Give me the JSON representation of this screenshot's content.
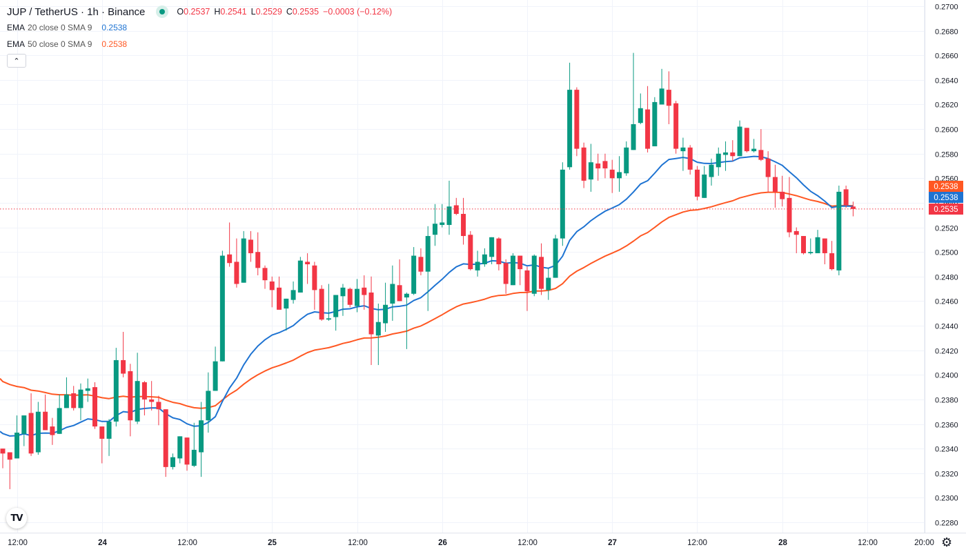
{
  "header": {
    "title": "JUP / TetherUS · 1h · Binance",
    "ohlc": {
      "o_label": "O",
      "o": "0.2537",
      "h_label": "H",
      "h": "0.2541",
      "l_label": "L",
      "l": "0.2529",
      "c_label": "C",
      "c": "0.2535",
      "change": "−0.0003 (−0.12%)"
    },
    "indicators": [
      {
        "name": "EMA",
        "args": "20 close 0 SMA 9",
        "value": "0.2538",
        "color": "#1e73d2"
      },
      {
        "name": "EMA",
        "args": "50 close 0 SMA 9",
        "value": "0.2538",
        "color": "#ff5722"
      }
    ],
    "collapse_icon": "chevron-up-icon"
  },
  "logo_text": "TV",
  "colors": {
    "up": "#089981",
    "down": "#f23645",
    "ema20": "#1e73d2",
    "ema50": "#ff5722",
    "grid": "#f0f3fa"
  },
  "price_labels": [
    {
      "value": "0.2538",
      "color": "#ff5722"
    },
    {
      "value": "0.2538",
      "color": "#1e73d2"
    },
    {
      "value": "0.2535",
      "color": "#f23645"
    }
  ],
  "chart_data": {
    "type": "candlestick",
    "title": "JUP / TetherUS · 1h · Binance",
    "interval": "1h",
    "ylim": [
      0.228,
      0.27
    ],
    "yticks": [
      "0.2700",
      "0.2680",
      "0.2660",
      "0.2640",
      "0.2620",
      "0.2600",
      "0.2580",
      "0.2560",
      "0.2540",
      "0.2520",
      "0.2500",
      "0.2480",
      "0.2460",
      "0.2440",
      "0.2420",
      "0.2400",
      "0.2380",
      "0.2360",
      "0.2340",
      "0.2320",
      "0.2300",
      "0.2280"
    ],
    "xticks": [
      {
        "label": "12:00",
        "index": 2
      },
      {
        "label": "24",
        "index": 14
      },
      {
        "label": "12:00",
        "index": 26
      },
      {
        "label": "25",
        "index": 38
      },
      {
        "label": "12:00",
        "index": 50
      },
      {
        "label": "26",
        "index": 62
      },
      {
        "label": "12:00",
        "index": 74
      },
      {
        "label": "27",
        "index": 86
      },
      {
        "label": "12:00",
        "index": 98
      },
      {
        "label": "28",
        "index": 110
      },
      {
        "label": "12:00",
        "index": 122
      },
      {
        "label": "20:00",
        "index": 130
      }
    ],
    "last_price": 0.2535,
    "ema_seed": {
      "ema20": 0.2354,
      "ema50": 0.2397
    },
    "ohlc": [
      [
        0.234,
        0.234,
        0.2324,
        0.2336
      ],
      [
        0.2337,
        0.2337,
        0.2307,
        0.2331
      ],
      [
        0.2332,
        0.2367,
        0.2332,
        0.2353
      ],
      [
        0.2352,
        0.2367,
        0.2342,
        0.2367
      ],
      [
        0.2369,
        0.2385,
        0.2334,
        0.2336
      ],
      [
        0.2337,
        0.2378,
        0.2335,
        0.237
      ],
      [
        0.237,
        0.2384,
        0.2355,
        0.2355
      ],
      [
        0.2358,
        0.2365,
        0.2343,
        0.2351
      ],
      [
        0.2352,
        0.2384,
        0.2352,
        0.2373
      ],
      [
        0.2373,
        0.2398,
        0.2373,
        0.2384
      ],
      [
        0.2385,
        0.2391,
        0.2371,
        0.2373
      ],
      [
        0.2373,
        0.2393,
        0.2363,
        0.2388
      ],
      [
        0.2387,
        0.2397,
        0.2378,
        0.2389
      ],
      [
        0.239,
        0.2394,
        0.2356,
        0.2358
      ],
      [
        0.2358,
        0.2358,
        0.2328,
        0.2348
      ],
      [
        0.2348,
        0.2364,
        0.2334,
        0.2362
      ],
      [
        0.2362,
        0.2422,
        0.2358,
        0.2412
      ],
      [
        0.2412,
        0.2435,
        0.2398,
        0.2401
      ],
      [
        0.2403,
        0.2409,
        0.235,
        0.2363
      ],
      [
        0.2362,
        0.2418,
        0.236,
        0.2395
      ],
      [
        0.2394,
        0.2395,
        0.2367,
        0.238
      ],
      [
        0.238,
        0.2395,
        0.2371,
        0.2378
      ],
      [
        0.2378,
        0.2383,
        0.2359,
        0.2372
      ],
      [
        0.2372,
        0.2372,
        0.2317,
        0.2325
      ],
      [
        0.2325,
        0.2336,
        0.2323,
        0.2333
      ],
      [
        0.2332,
        0.235,
        0.2328,
        0.235
      ],
      [
        0.2349,
        0.2349,
        0.2322,
        0.2327
      ],
      [
        0.2326,
        0.2361,
        0.2325,
        0.2339
      ],
      [
        0.2337,
        0.2378,
        0.2317,
        0.2363
      ],
      [
        0.2363,
        0.2402,
        0.2353,
        0.2387
      ],
      [
        0.2387,
        0.2423,
        0.2387,
        0.2411
      ],
      [
        0.2411,
        0.2501,
        0.2411,
        0.2497
      ],
      [
        0.2498,
        0.2524,
        0.2488,
        0.2491
      ],
      [
        0.2492,
        0.2511,
        0.2471,
        0.2474
      ],
      [
        0.2475,
        0.2517,
        0.2475,
        0.2511
      ],
      [
        0.251,
        0.2517,
        0.2492,
        0.2499
      ],
      [
        0.25,
        0.2516,
        0.2481,
        0.2487
      ],
      [
        0.2487,
        0.2489,
        0.247,
        0.2477
      ],
      [
        0.2476,
        0.248,
        0.2455,
        0.2469
      ],
      [
        0.2471,
        0.248,
        0.2453,
        0.2453
      ],
      [
        0.2454,
        0.2462,
        0.2436,
        0.2462
      ],
      [
        0.2461,
        0.2476,
        0.2458,
        0.2469
      ],
      [
        0.2467,
        0.2496,
        0.2467,
        0.2493
      ],
      [
        0.2492,
        0.2499,
        0.2474,
        0.249
      ],
      [
        0.2489,
        0.2492,
        0.2453,
        0.2469
      ],
      [
        0.247,
        0.2473,
        0.2444,
        0.2445
      ],
      [
        0.2445,
        0.2474,
        0.2444,
        0.2446
      ],
      [
        0.2447,
        0.2465,
        0.2436,
        0.2465
      ],
      [
        0.2464,
        0.2474,
        0.2448,
        0.2471
      ],
      [
        0.247,
        0.2471,
        0.2455,
        0.2457
      ],
      [
        0.2456,
        0.2478,
        0.2451,
        0.247
      ],
      [
        0.2471,
        0.2481,
        0.2453,
        0.2465
      ],
      [
        0.2467,
        0.248,
        0.2408,
        0.2433
      ],
      [
        0.2432,
        0.2458,
        0.2408,
        0.2443
      ],
      [
        0.2442,
        0.2475,
        0.2435,
        0.2457
      ],
      [
        0.2458,
        0.2489,
        0.2444,
        0.2474
      ],
      [
        0.2473,
        0.2494,
        0.246,
        0.246
      ],
      [
        0.2463,
        0.2467,
        0.2421,
        0.2466
      ],
      [
        0.2466,
        0.2504,
        0.2465,
        0.2497
      ],
      [
        0.2496,
        0.2503,
        0.2481,
        0.2484
      ],
      [
        0.2484,
        0.2521,
        0.2452,
        0.2513
      ],
      [
        0.2514,
        0.2539,
        0.2505,
        0.2523
      ],
      [
        0.2522,
        0.2539,
        0.252,
        0.2524
      ],
      [
        0.2522,
        0.2558,
        0.2514,
        0.2537
      ],
      [
        0.2538,
        0.2544,
        0.253,
        0.2531
      ],
      [
        0.2531,
        0.2544,
        0.2506,
        0.2513
      ],
      [
        0.2514,
        0.2517,
        0.2485,
        0.2486
      ],
      [
        0.2485,
        0.2501,
        0.248,
        0.2492
      ],
      [
        0.249,
        0.2503,
        0.2488,
        0.2498
      ],
      [
        0.2496,
        0.2512,
        0.249,
        0.2512
      ],
      [
        0.2511,
        0.2512,
        0.2485,
        0.249
      ],
      [
        0.2491,
        0.2494,
        0.2466,
        0.2474
      ],
      [
        0.2473,
        0.2499,
        0.2473,
        0.2497
      ],
      [
        0.2497,
        0.2497,
        0.2473,
        0.2486
      ],
      [
        0.2485,
        0.2488,
        0.2452,
        0.2468
      ],
      [
        0.2466,
        0.2498,
        0.2464,
        0.2497
      ],
      [
        0.2496,
        0.2507,
        0.2465,
        0.247
      ],
      [
        0.2469,
        0.2487,
        0.2461,
        0.2479
      ],
      [
        0.2479,
        0.2514,
        0.2479,
        0.2511
      ],
      [
        0.2511,
        0.2573,
        0.2505,
        0.2567
      ],
      [
        0.2569,
        0.2654,
        0.2567,
        0.2632
      ],
      [
        0.2632,
        0.2634,
        0.2578,
        0.2584
      ],
      [
        0.2585,
        0.2589,
        0.2552,
        0.2558
      ],
      [
        0.2559,
        0.2588,
        0.2549,
        0.2573
      ],
      [
        0.2572,
        0.258,
        0.2558,
        0.2568
      ],
      [
        0.2574,
        0.258,
        0.256,
        0.2568
      ],
      [
        0.2567,
        0.2575,
        0.2548,
        0.256
      ],
      [
        0.256,
        0.2578,
        0.2549,
        0.2565
      ],
      [
        0.2564,
        0.259,
        0.2562,
        0.2585
      ],
      [
        0.2583,
        0.2662,
        0.2583,
        0.2604
      ],
      [
        0.2605,
        0.2629,
        0.2604,
        0.2617
      ],
      [
        0.2616,
        0.2635,
        0.2581,
        0.2584
      ],
      [
        0.2586,
        0.2626,
        0.2586,
        0.2622
      ],
      [
        0.262,
        0.2649,
        0.262,
        0.2633
      ],
      [
        0.2632,
        0.2647,
        0.2604,
        0.2619
      ],
      [
        0.2621,
        0.2623,
        0.258,
        0.2584
      ],
      [
        0.2582,
        0.2593,
        0.2566,
        0.2585
      ],
      [
        0.2585,
        0.2587,
        0.2563,
        0.2567
      ],
      [
        0.2567,
        0.257,
        0.2542,
        0.2545
      ],
      [
        0.2544,
        0.257,
        0.2544,
        0.2563
      ],
      [
        0.2561,
        0.2576,
        0.2554,
        0.2571
      ],
      [
        0.2569,
        0.2585,
        0.2562,
        0.258
      ],
      [
        0.2579,
        0.259,
        0.2566,
        0.2581
      ],
      [
        0.2581,
        0.2591,
        0.2574,
        0.2578
      ],
      [
        0.2578,
        0.2607,
        0.2578,
        0.2602
      ],
      [
        0.2601,
        0.2601,
        0.2581,
        0.2582
      ],
      [
        0.2582,
        0.2592,
        0.2581,
        0.2584
      ],
      [
        0.2583,
        0.26,
        0.2574,
        0.2575
      ],
      [
        0.2576,
        0.2582,
        0.2549,
        0.2561
      ],
      [
        0.2561,
        0.2571,
        0.2536,
        0.2549
      ],
      [
        0.2549,
        0.2562,
        0.2537,
        0.2543
      ],
      [
        0.2544,
        0.2561,
        0.2512,
        0.2516
      ],
      [
        0.2517,
        0.252,
        0.2499,
        0.2514
      ],
      [
        0.2513,
        0.2513,
        0.2498,
        0.2499
      ],
      [
        0.2499,
        0.2511,
        0.2498,
        0.25
      ],
      [
        0.2499,
        0.2518,
        0.2499,
        0.2512
      ],
      [
        0.2511,
        0.2511,
        0.249,
        0.2499
      ],
      [
        0.2499,
        0.2509,
        0.2485,
        0.2486
      ],
      [
        0.2485,
        0.2554,
        0.2481,
        0.2549
      ],
      [
        0.2551,
        0.2554,
        0.2536,
        0.2538
      ],
      [
        0.2537,
        0.2541,
        0.2529,
        0.2535
      ]
    ]
  }
}
